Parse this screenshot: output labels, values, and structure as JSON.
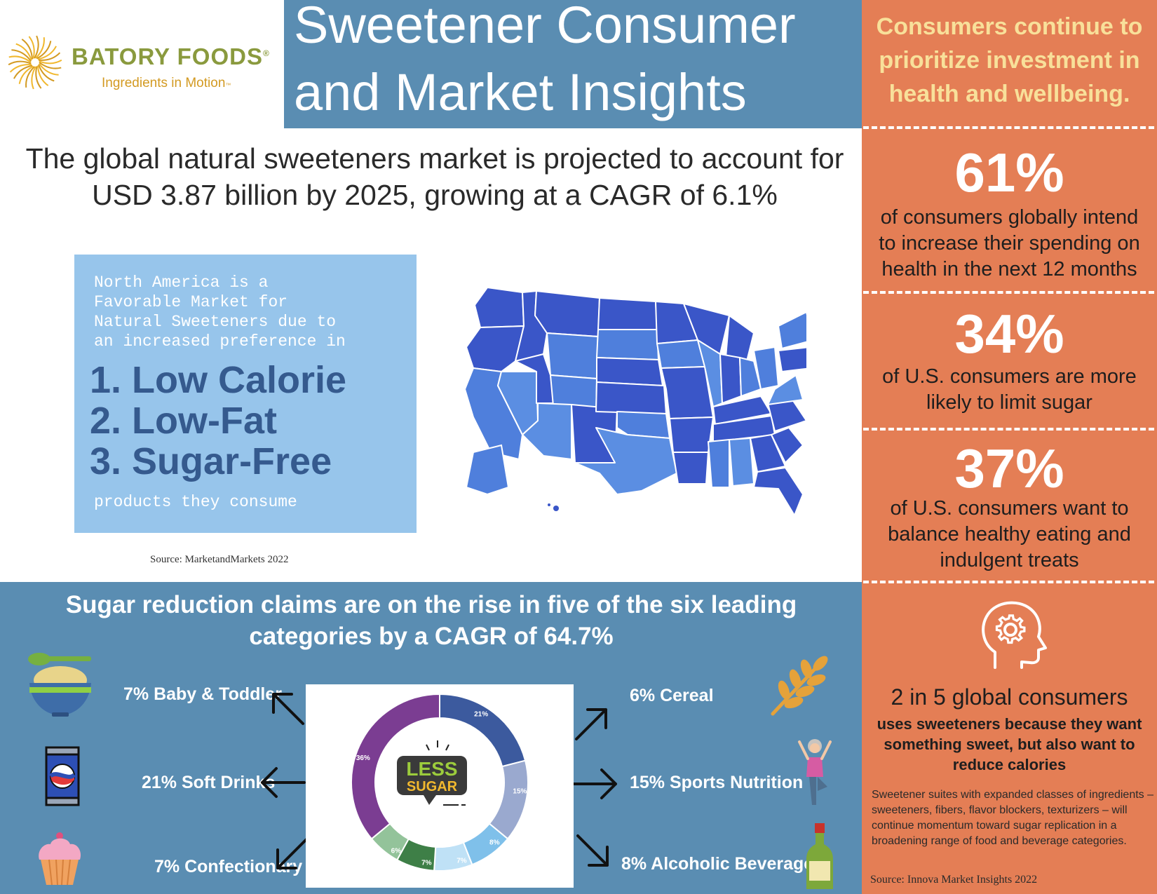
{
  "logo": {
    "brand": "BATORY FOODS",
    "registered": "®",
    "tagline": "Ingredients in Motion",
    "tagline_mark": "™"
  },
  "title": {
    "line1": "Sweetener Consumer",
    "line2": "and Market Insights"
  },
  "headline": {
    "line1": "The global natural sweeteners market is projected to account for",
    "line2": "USD 3.87 billion by 2025, growing at a CAGR of 6.1%"
  },
  "north_america": {
    "intro": "North America is a\nFavorable Market for\nNatural Sweeteners due to\nan increased preference in",
    "items": [
      "1. Low Calorie",
      "2. Low-Fat",
      "3. Sugar-Free"
    ],
    "outro": "products they consume"
  },
  "source_mm": "Source: MarketandMarkets 2022",
  "right": {
    "heading": [
      "Consumers continue to",
      "prioritize investment in",
      "health and wellbeing."
    ],
    "stats": [
      {
        "value": "61%",
        "lines": [
          "of consumers globally intend",
          "to increase their spending on",
          "health in the next 12 months"
        ]
      },
      {
        "value": "34%",
        "lines": [
          "of U.S. consumers are more",
          "likely to limit sugar"
        ]
      },
      {
        "value": "37%",
        "lines": [
          "of U.S. consumers want to",
          "balance healthy eating and",
          "indulgent treats"
        ]
      }
    ],
    "two_in_five": "2 in 5 global consumers",
    "uses": "uses sweeteners because they want something sweet, but also want to reduce calories",
    "suites": "Sweetener suites with expanded classes of ingredients – sweeteners, fibers, flavor blockers, texturizers – will continue momentum toward sugar replication in a broadening range of food and beverage categories.",
    "source": "Source: Innova Market Insights 2022",
    "icon": "head-gear-icon"
  },
  "bottom": {
    "heading": [
      "Sugar reduction claims are on the rise in five of the six leading",
      "categories by a CAGR of 64.7%"
    ],
    "categories": [
      {
        "label": "7% Baby & Toddler",
        "icon": "baby-food-bowl-icon"
      },
      {
        "label": "21% Soft Drinks",
        "icon": "soda-can-icon"
      },
      {
        "label": "7% Confectionary",
        "icon": "cupcake-icon"
      },
      {
        "label": "6% Cereal",
        "icon": "wheat-icon"
      },
      {
        "label": "15% Sports Nutrition",
        "icon": "yoga-person-icon"
      },
      {
        "label": "8% Alcoholic Beverages",
        "icon": "bottle-icon"
      }
    ],
    "badge": {
      "line1": "LESS",
      "line2": "SUGAR"
    }
  },
  "chart_data": {
    "type": "pie",
    "values": [
      21,
      15,
      8,
      7,
      7,
      6,
      36
    ],
    "labels": [
      "21%",
      "15%",
      "8%",
      "7%",
      "7%",
      "6%",
      "36%"
    ],
    "colors": [
      "#3c5a9e",
      "#9aa9cf",
      "#7fc0ea",
      "#bfe1f6",
      "#3e7f47",
      "#93c39a",
      "#7b3d92"
    ]
  }
}
